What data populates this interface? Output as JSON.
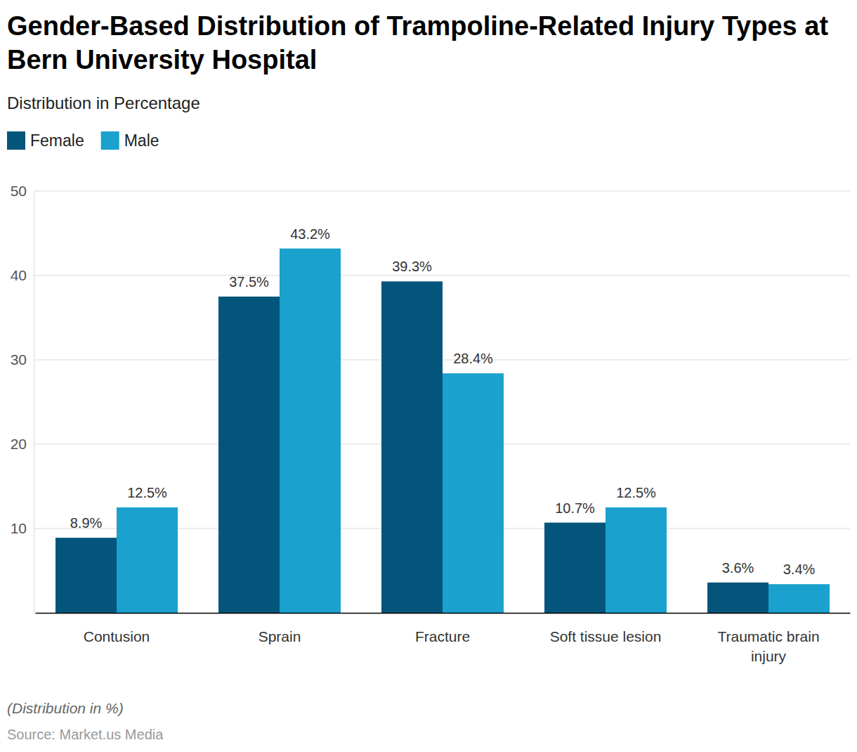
{
  "chart_data": {
    "type": "bar",
    "title": "Gender-Based Distribution of Trampoline-Related Injury Types at Bern University Hospital",
    "subtitle": "Distribution in Percentage",
    "note": "(Distribution in %)",
    "source": "Source: Market.us Media",
    "categories": [
      "Contusion",
      "Sprain",
      "Fracture",
      "Soft tissue lesion",
      "Traumatic brain injury"
    ],
    "series": [
      {
        "name": "Female",
        "color": "#03557b",
        "values": [
          8.9,
          37.5,
          39.3,
          10.7,
          3.6
        ],
        "value_labels": [
          "8.9%",
          "37.5%",
          "39.3%",
          "10.7%",
          "3.6%"
        ]
      },
      {
        "name": "Male",
        "color": "#1aa1cd",
        "values": [
          12.5,
          43.2,
          28.4,
          12.5,
          3.4
        ],
        "value_labels": [
          "12.5%",
          "43.2%",
          "28.4%",
          "12.5%",
          "3.4%"
        ]
      }
    ],
    "ylim": [
      0,
      50
    ],
    "yticks": [
      10,
      20,
      30,
      40,
      50
    ],
    "grid": true,
    "data_labels": true,
    "legend": "top-left"
  }
}
